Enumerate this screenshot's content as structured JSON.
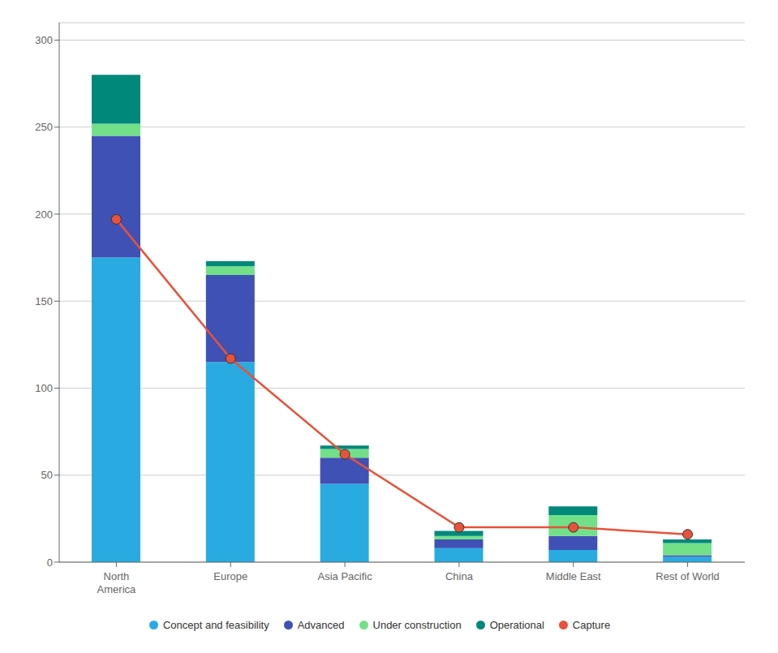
{
  "chart_data": {
    "type": "bar",
    "stacked": true,
    "categories": [
      "North\nAmerica",
      "Europe",
      "Asia Pacific",
      "China",
      "Middle East",
      "Rest of World"
    ],
    "series": [
      {
        "name": "Concept and feasibility",
        "color": "#29ABE2",
        "values": [
          175,
          115,
          45,
          8,
          7,
          3
        ]
      },
      {
        "name": "Advanced",
        "color": "#3F51B5",
        "values": [
          70,
          50,
          15,
          5,
          8,
          1
        ]
      },
      {
        "name": "Under construction",
        "color": "#72E089",
        "values": [
          7,
          5,
          5,
          2,
          12,
          7
        ]
      },
      {
        "name": "Operational",
        "color": "#00897B",
        "values": [
          28,
          3,
          2,
          3,
          5,
          2
        ]
      },
      {
        "name": "Capture",
        "type": "line",
        "marker": "circle",
        "color": "#E8523A",
        "values": [
          197,
          117,
          62,
          20,
          20,
          16
        ]
      }
    ],
    "ylim": [
      0,
      310
    ],
    "yticks": [
      0,
      50,
      100,
      150,
      200,
      250,
      300
    ],
    "grid": true,
    "legend": "bottom"
  }
}
